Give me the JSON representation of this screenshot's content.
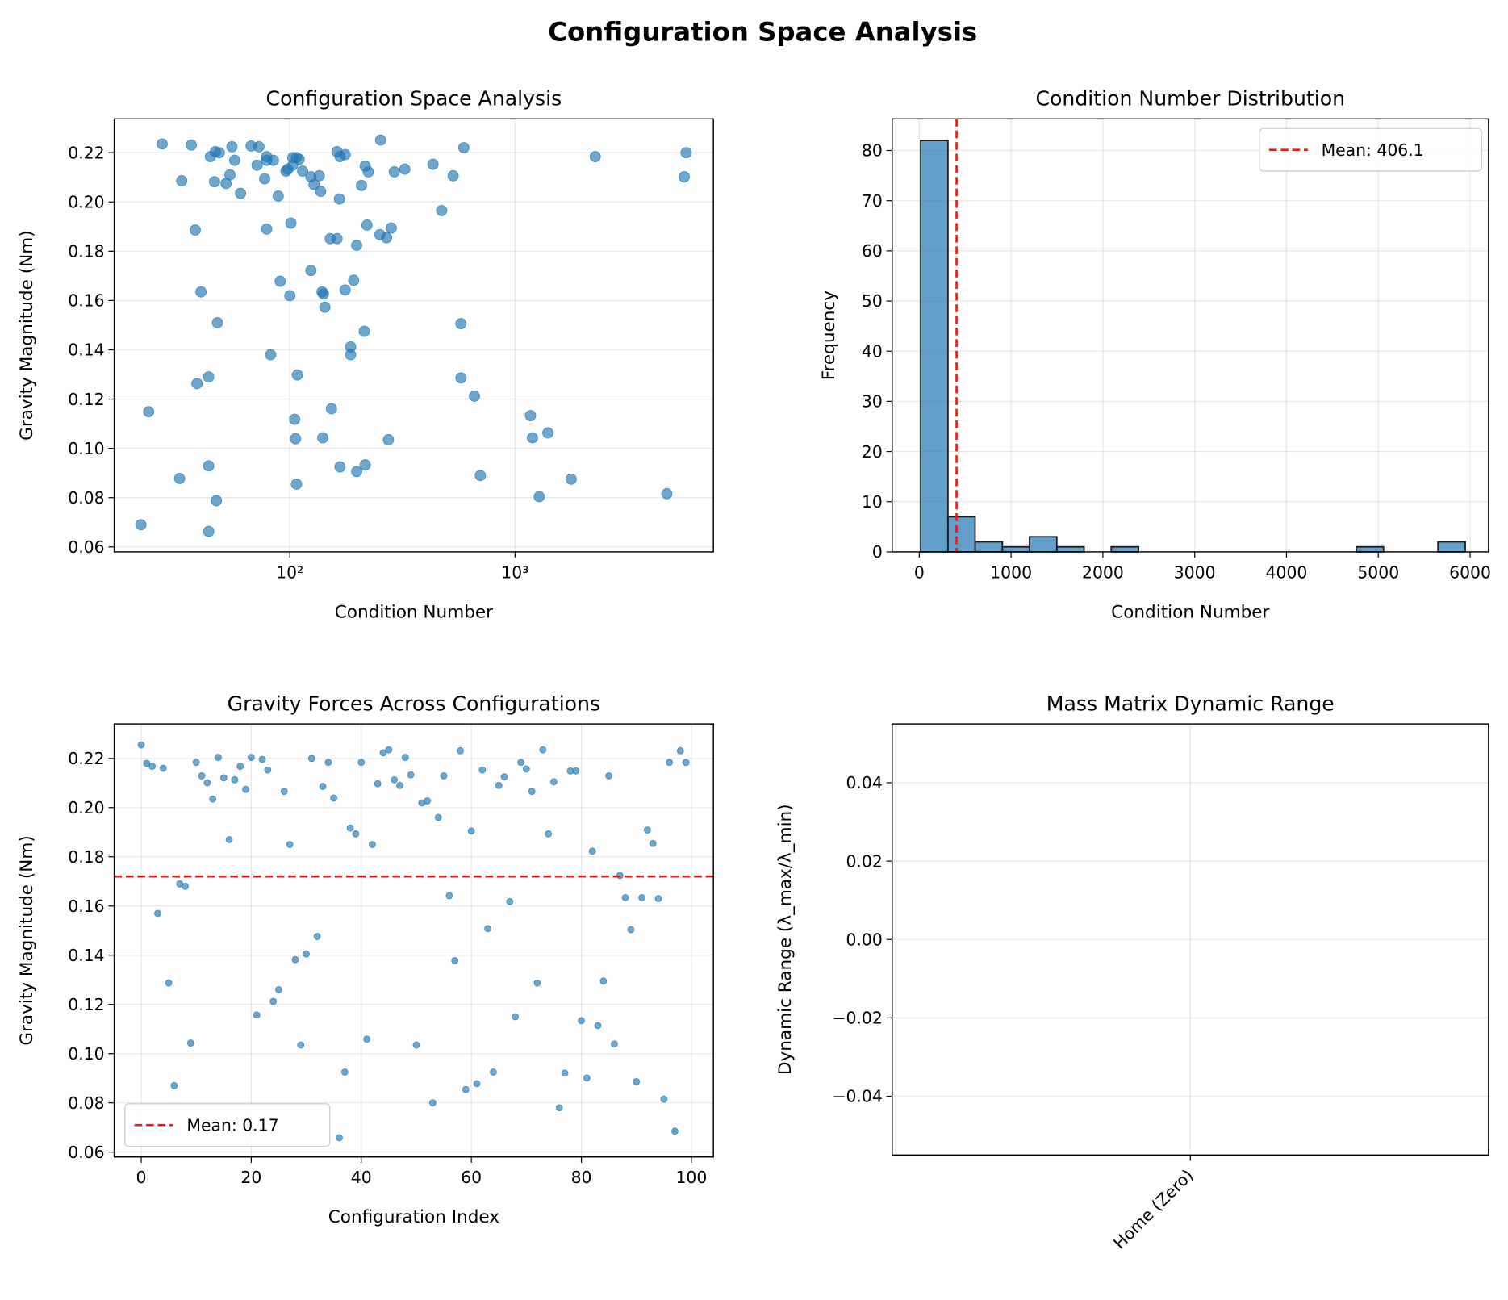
{
  "title": "Configuration Space Analysis",
  "chart_data": [
    {
      "type": "scatter",
      "title": "Configuration Space Analysis",
      "xlabel": "Condition Number",
      "ylabel": "Gravity Magnitude (Nm)",
      "xlog": true,
      "xlim": [
        16.6,
        7600
      ],
      "xticks": [
        {
          "value": 100,
          "label": "10²"
        },
        {
          "value": 1000,
          "label": "10³"
        }
      ],
      "ylim": [
        0.058,
        0.2337
      ],
      "yticks": [
        0.06,
        0.08,
        {
          "value": 0.1,
          "label": "0.10"
        },
        0.12,
        0.14,
        0.16,
        0.18,
        {
          "value": 0.2,
          "label": "0.20"
        },
        0.22
      ],
      "grid": true,
      "color": "#1f77b4",
      "x": [
        27.1,
        36.5,
        46.7,
        48.6,
        55.3,
        67.3,
        72.9,
        44.4,
        56.9,
        78.9,
        71.5,
        78.9,
        84.5,
        98.0,
        103,
        107,
        110,
        96.1,
        114,
        103,
        162,
        167,
        176,
        253,
        216,
        223,
        124,
        128,
        135,
        137,
        166,
        208,
        291,
        324,
        432,
        531,
        472,
        33.1,
        46.3,
        52.1,
        54.2,
        60.4,
        88.8,
        77.3,
        2271,
        5750,
        5640,
        592,
        101,
        78.9,
        38.0,
        220,
        282,
        251,
        269,
        151,
        162,
        198,
        124,
        90.6,
        139,
        141,
        100,
        192,
        176,
        143,
        40.3,
        47.7,
        575,
        214,
        186,
        186,
        82.1,
        108,
        43.6,
        38.7,
        575,
        660,
        23.6,
        153,
        105,
        1171,
        1399,
        1195,
        106,
        140,
        274,
        167,
        216,
        43.6,
        32.4,
        198,
        701,
        1774,
        107,
        47.2,
        1280,
        4720,
        21.8,
        43.6
      ],
      "y": [
        0.2235,
        0.2231,
        0.2204,
        0.22,
        0.2224,
        0.2227,
        0.2224,
        0.2184,
        0.2169,
        0.2184,
        0.2149,
        0.2169,
        0.2169,
        0.2133,
        0.218,
        0.218,
        0.2173,
        0.2125,
        0.2125,
        0.2149,
        0.2204,
        0.2184,
        0.2192,
        0.2251,
        0.2145,
        0.2122,
        0.2102,
        0.2071,
        0.2106,
        0.2043,
        0.2012,
        0.2067,
        0.2122,
        0.2133,
        0.2153,
        0.2106,
        0.1965,
        0.2086,
        0.2082,
        0.2075,
        0.211,
        0.2035,
        0.2024,
        0.2094,
        0.2184,
        0.22,
        0.2102,
        0.222,
        0.1914,
        0.189,
        0.1886,
        0.1906,
        0.1894,
        0.1867,
        0.1855,
        0.1851,
        0.1851,
        0.1824,
        0.1722,
        0.1678,
        0.1635,
        0.1627,
        0.162,
        0.1682,
        0.1643,
        0.1573,
        0.1635,
        0.151,
        0.1506,
        0.1475,
        0.1412,
        0.138,
        0.138,
        0.1298,
        0.129,
        0.1263,
        0.1286,
        0.1212,
        0.1149,
        0.1161,
        0.1118,
        0.1133,
        0.1063,
        0.1043,
        0.1039,
        0.1043,
        0.1035,
        0.0925,
        0.0933,
        0.0929,
        0.0878,
        0.0906,
        0.089,
        0.0875,
        0.0855,
        0.0788,
        0.0804,
        0.0816,
        0.069,
        0.0663
      ]
    },
    {
      "type": "histogram",
      "title": "Condition Number Distribution",
      "xlabel": "Condition Number",
      "ylabel": "Frequency",
      "xlim": [
        -295,
        6200
      ],
      "xticks": [
        0,
        1000,
        2000,
        3000,
        4000,
        5000,
        6000
      ],
      "ylim": [
        0,
        86.3
      ],
      "yticks": [
        0,
        10,
        20,
        30,
        40,
        50,
        60,
        70,
        80
      ],
      "grid": true,
      "color": "#1f77b4",
      "legend": "upper right",
      "bins": [
        15,
        312,
        608,
        905,
        1201,
        1498,
        1795,
        2091,
        2388,
        2684,
        2981,
        3278,
        3574,
        3871,
        4167,
        4464,
        4761,
        5057,
        5354,
        5650,
        5947
      ],
      "values": [
        82,
        7,
        2,
        1,
        3,
        1,
        0,
        1,
        0,
        0,
        0,
        0,
        0,
        0,
        0,
        0,
        1,
        0,
        0,
        2
      ],
      "mean_line": {
        "orientation": "vertical",
        "value": 406.1,
        "label": "Mean: 406.1",
        "color": "#e41a1c"
      }
    },
    {
      "type": "scatter",
      "title": "Gravity Forces Across Configurations",
      "xlabel": "Configuration Index",
      "ylabel": "Gravity Magnitude (Nm)",
      "xlim": [
        -4.9,
        104
      ],
      "xticks": [
        0,
        20,
        40,
        60,
        80,
        100
      ],
      "ylim": [
        0.058,
        0.234
      ],
      "yticks": [
        0.06,
        0.08,
        {
          "value": 0.1,
          "label": "0.10"
        },
        0.12,
        0.14,
        0.16,
        0.18,
        {
          "value": 0.2,
          "label": "0.20"
        },
        0.22
      ],
      "grid": true,
      "color": "#1f77b4",
      "legend": "lower left",
      "small": true,
      "x": [
        0,
        1,
        2,
        3,
        4,
        5,
        6,
        7,
        8,
        9,
        10,
        11,
        12,
        13,
        14,
        15,
        16,
        17,
        18,
        19,
        20,
        21,
        22,
        23,
        24,
        25,
        26,
        27,
        28,
        29,
        30,
        31,
        32,
        33,
        34,
        35,
        36,
        37,
        38,
        39,
        40,
        41,
        42,
        43,
        44,
        45,
        46,
        47,
        48,
        49,
        50,
        51,
        52,
        53,
        54,
        55,
        56,
        57,
        58,
        59,
        60,
        61,
        62,
        63,
        64,
        65,
        66,
        67,
        68,
        69,
        70,
        71,
        72,
        73,
        74,
        75,
        76,
        77,
        78,
        79,
        80,
        81,
        82,
        83,
        84,
        85,
        86,
        87,
        88,
        89,
        90,
        91,
        92,
        93,
        94,
        95,
        96,
        97,
        98,
        99
      ],
      "y": [
        0.2255,
        0.218,
        0.2168,
        0.157,
        0.216,
        0.1287,
        0.087,
        0.169,
        0.168,
        0.1043,
        0.2184,
        0.2129,
        0.2101,
        0.2035,
        0.2204,
        0.2121,
        0.187,
        0.2113,
        0.2168,
        0.2074,
        0.2204,
        0.1157,
        0.2196,
        0.2153,
        0.1212,
        0.126,
        0.2066,
        0.185,
        0.1382,
        0.1035,
        0.1405,
        0.22,
        0.1476,
        0.2086,
        0.2184,
        0.2039,
        0.0658,
        0.0925,
        0.1917,
        0.1893,
        0.2184,
        0.1059,
        0.185,
        0.2097,
        0.2223,
        0.2235,
        0.2113,
        0.209,
        0.2204,
        0.2133,
        0.1035,
        0.2019,
        0.2027,
        0.08,
        0.196,
        0.2129,
        0.1642,
        0.1378,
        0.2231,
        0.0854,
        0.1905,
        0.0878,
        0.2153,
        0.1508,
        0.0925,
        0.209,
        0.2125,
        0.1618,
        0.115,
        0.2184,
        0.2157,
        0.2066,
        0.1287,
        0.2235,
        0.1893,
        0.2105,
        0.078,
        0.0921,
        0.2149,
        0.2149,
        0.1134,
        0.0901,
        0.1823,
        0.1114,
        0.1295,
        0.2129,
        0.1039,
        0.1724,
        0.1634,
        0.1504,
        0.0886,
        0.1634,
        0.1909,
        0.1854,
        0.163,
        0.0815,
        0.2184,
        0.0685,
        0.2231,
        0.2184
      ],
      "mean_line": {
        "orientation": "horizontal",
        "value": 0.172,
        "label": "Mean: 0.17",
        "color": "#e41a1c"
      }
    },
    {
      "type": "bar",
      "title": "Mass Matrix Dynamic Range",
      "ylabel": "Dynamic Range (λ_max/λ_min)",
      "categories": [
        "Home (Zero)"
      ],
      "values": [
        null
      ],
      "ylim": [
        -0.055,
        0.055
      ],
      "yticks": [
        {
          "value": -0.04,
          "label": "−0.04"
        },
        {
          "value": -0.02,
          "label": "−0.02"
        },
        {
          "value": 0,
          "label": "0.00"
        },
        0.02,
        0.04
      ],
      "grid": true,
      "color": "#1f77b4"
    }
  ]
}
